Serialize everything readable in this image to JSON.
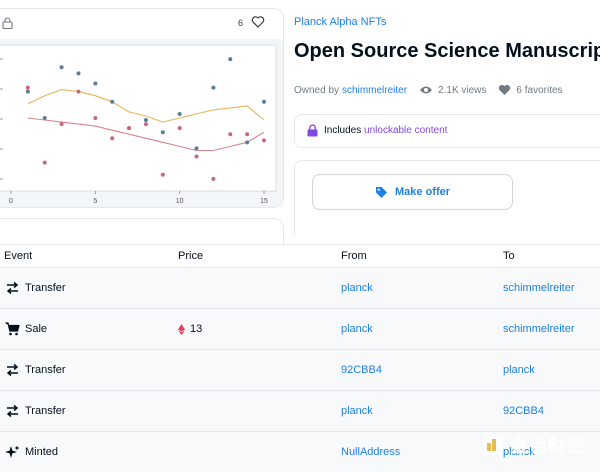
{
  "left_card": {
    "favorite_count": "6",
    "chart_data": {
      "type": "scatter",
      "x_ticks": [
        "0",
        "5",
        "10",
        "15"
      ],
      "xlim": [
        0,
        15
      ],
      "blue_points": [
        [
          1,
          73
        ],
        [
          2,
          60
        ],
        [
          3,
          85
        ],
        [
          4,
          82
        ],
        [
          5,
          77
        ],
        [
          6,
          68
        ],
        [
          7,
          55
        ],
        [
          8,
          59
        ],
        [
          9,
          53
        ],
        [
          10,
          62
        ],
        [
          11,
          45
        ],
        [
          12,
          75
        ],
        [
          13,
          89
        ],
        [
          14,
          48
        ],
        [
          15,
          68
        ]
      ],
      "red_points": [
        [
          1,
          75
        ],
        [
          2,
          38
        ],
        [
          3,
          57
        ],
        [
          4,
          73
        ],
        [
          5,
          60
        ],
        [
          6,
          50
        ],
        [
          7,
          55
        ],
        [
          8,
          57
        ],
        [
          9,
          32
        ],
        [
          10,
          55
        ],
        [
          11,
          41
        ],
        [
          12,
          30
        ],
        [
          13,
          52
        ],
        [
          14,
          52
        ],
        [
          15,
          49
        ]
      ],
      "orange_line": [
        [
          1,
          67
        ],
        [
          2,
          71
        ],
        [
          3,
          74
        ],
        [
          4,
          73
        ],
        [
          5,
          71
        ],
        [
          6,
          68
        ],
        [
          7,
          63
        ],
        [
          8,
          61
        ],
        [
          9,
          58
        ],
        [
          10,
          60
        ],
        [
          11,
          62
        ],
        [
          12,
          64
        ],
        [
          13,
          65
        ],
        [
          14,
          66
        ],
        [
          15,
          59
        ]
      ],
      "red_line": [
        [
          1,
          60
        ],
        [
          2,
          59
        ],
        [
          3,
          58
        ],
        [
          4,
          57
        ],
        [
          5,
          56
        ],
        [
          6,
          54
        ],
        [
          7,
          52
        ],
        [
          8,
          50
        ],
        [
          9,
          48
        ],
        [
          10,
          46
        ],
        [
          11,
          44
        ],
        [
          12,
          44
        ],
        [
          13,
          46
        ],
        [
          14,
          48
        ],
        [
          15,
          53
        ]
      ]
    }
  },
  "header": {
    "collection": "Planck Alpha NFTs",
    "title": "Open Source Science Manuscript",
    "owned_by_label": "Owned by",
    "owner": "schimmelreiter",
    "views": "2.1K views",
    "favorites": "6 favorites"
  },
  "unlockable": {
    "prefix": "Includes",
    "highlight": "unlockable content"
  },
  "offer": {
    "button_label": "Make offer"
  },
  "table": {
    "headers": {
      "event": "Event",
      "price": "Price",
      "from": "From",
      "to": "To"
    },
    "rows": [
      {
        "event": "Transfer",
        "price": "",
        "from": "planck",
        "to": "schimmelreiter",
        "icon": "transfer-icon"
      },
      {
        "event": "Sale",
        "price": "13",
        "from": "planck",
        "to": "schimmelreiter",
        "icon": "cart-icon"
      },
      {
        "event": "Transfer",
        "price": "",
        "from": "92CBB4",
        "to": "planck",
        "icon": "transfer-icon"
      },
      {
        "event": "Transfer",
        "price": "",
        "from": "planck",
        "to": "92CBB4",
        "icon": "transfer-icon"
      },
      {
        "event": "Minted",
        "price": "",
        "from": "NullAddress",
        "to": "planck",
        "icon": "sparkle-icon"
      }
    ]
  },
  "watermark": {
    "text": "金色财经"
  },
  "colors": {
    "accent": "#2081e2",
    "purple": "#8247e5",
    "eth": "#e4405f"
  }
}
